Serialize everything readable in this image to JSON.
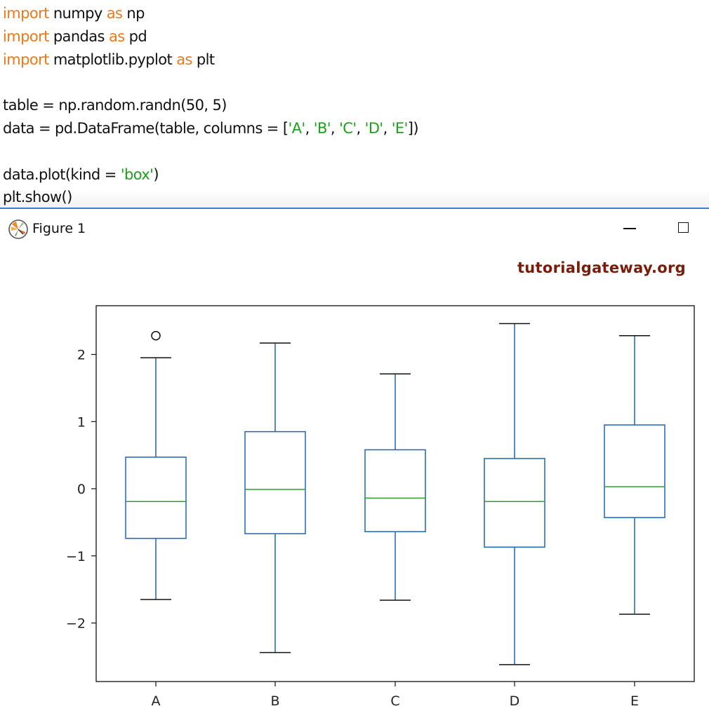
{
  "code": {
    "lines": [
      [
        {
          "t": "import",
          "c": "kw"
        },
        {
          "t": " numpy "
        },
        {
          "t": "as",
          "c": "kw"
        },
        {
          "t": " np"
        }
      ],
      [
        {
          "t": "import",
          "c": "kw"
        },
        {
          "t": " pandas "
        },
        {
          "t": "as",
          "c": "kw"
        },
        {
          "t": " pd"
        }
      ],
      [
        {
          "t": "import",
          "c": "kw"
        },
        {
          "t": " matplotlib.pyplot "
        },
        {
          "t": "as",
          "c": "kw"
        },
        {
          "t": " plt"
        }
      ],
      [],
      [
        {
          "t": "table = np.random.randn(50, 5)"
        }
      ],
      [
        {
          "t": "data = pd.DataFrame(table, columns = ["
        },
        {
          "t": "'A'",
          "c": "str"
        },
        {
          "t": ", "
        },
        {
          "t": "'B'",
          "c": "str"
        },
        {
          "t": ", "
        },
        {
          "t": "'C'",
          "c": "str"
        },
        {
          "t": ", "
        },
        {
          "t": "'D'",
          "c": "str"
        },
        {
          "t": ", "
        },
        {
          "t": "'E'",
          "c": "str"
        },
        {
          "t": "])"
        }
      ],
      [],
      [
        {
          "t": "data.plot(kind = "
        },
        {
          "t": "'box'",
          "c": "str"
        },
        {
          "t": ")"
        }
      ],
      [
        {
          "t": "plt.show()"
        }
      ]
    ]
  },
  "window": {
    "title": "Figure 1",
    "icon": "matplotlib-logo-icon",
    "controls": [
      "minimize-icon",
      "maximize-icon"
    ]
  },
  "watermark": "tutorialgateway.org",
  "colors": {
    "keyword": "#f07818",
    "string": "#1aa31a",
    "box": "#1f63b5",
    "median": "#2ca02c",
    "cap": "#111111",
    "watermark": "#7a1c0a"
  },
  "chart_data": {
    "type": "box",
    "title": "",
    "xlabel": "",
    "ylabel": "",
    "categories": [
      "A",
      "B",
      "C",
      "D",
      "E"
    ],
    "yticks": [
      -2,
      -1,
      0,
      1,
      2
    ],
    "ylim": [
      -2.88,
      2.72
    ],
    "grid": false,
    "legend": null,
    "series": [
      {
        "name": "A",
        "whisker_low": -1.65,
        "q1": -0.74,
        "median": -0.19,
        "q3": 0.47,
        "whisker_high": 1.95,
        "outliers": [
          2.28
        ]
      },
      {
        "name": "B",
        "whisker_low": -2.44,
        "q1": -0.67,
        "median": -0.01,
        "q3": 0.85,
        "whisker_high": 2.17,
        "outliers": []
      },
      {
        "name": "C",
        "whisker_low": -1.66,
        "q1": -0.64,
        "median": -0.14,
        "q3": 0.58,
        "whisker_high": 1.71,
        "outliers": []
      },
      {
        "name": "D",
        "whisker_low": -2.62,
        "q1": -0.87,
        "median": -0.19,
        "q3": 0.45,
        "whisker_high": 2.46,
        "outliers": []
      },
      {
        "name": "E",
        "whisker_low": -1.87,
        "q1": -0.43,
        "median": 0.03,
        "q3": 0.95,
        "whisker_high": 2.28,
        "outliers": []
      }
    ]
  }
}
